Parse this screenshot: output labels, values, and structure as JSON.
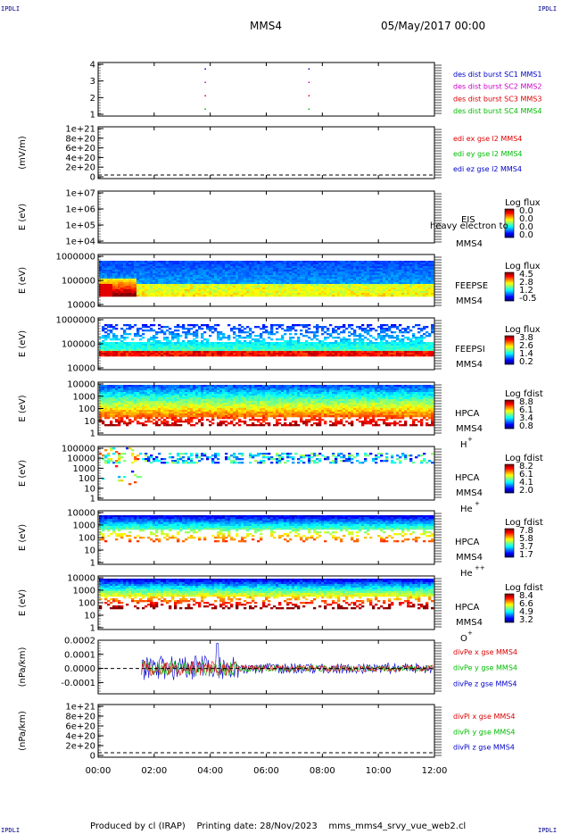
{
  "corner_label": "IPDLI",
  "header": {
    "spacecraft": "MMS4",
    "date": "05/May/2017 00:00"
  },
  "footer": {
    "produced_by": "Produced by cl (IRAP)",
    "printing_date": "Printing date: 28/Nov/2023",
    "filename": "mms_mms4_srvy_vue_web2.cl"
  },
  "x_axis": {
    "ticks": [
      "00:00",
      "02:00",
      "04:00",
      "06:00",
      "08:00",
      "10:00",
      "12:00"
    ],
    "range_hours": [
      0,
      12
    ]
  },
  "colors": {
    "red": "#dd0000",
    "magenta": "#cc00cc",
    "green": "#00bb00",
    "blue": "#0000cc"
  },
  "chart_data": [
    {
      "type": "scatter",
      "panel": "des_dist_burst",
      "ylim": [
        0.5,
        4.5
      ],
      "yticks": [
        "1",
        "2",
        "3",
        "4"
      ],
      "legend": [
        {
          "label": "des dist burst SC1 MMS1",
          "color": "#0000cc"
        },
        {
          "label": "des dist burst SC2 MMS2",
          "color": "#cc00cc"
        },
        {
          "label": "des dist burst SC3 MMS3",
          "color": "#dd0000"
        },
        {
          "label": "des dist burst SC4 MMS4",
          "color": "#00bb00"
        }
      ],
      "series": [
        {
          "x": [
            3.8,
            7.5
          ],
          "y": [
            4,
            4
          ]
        },
        {
          "x": [
            3.8,
            7.5
          ],
          "y": [
            3,
            3
          ]
        },
        {
          "x": [
            3.8,
            7.5
          ],
          "y": [
            2,
            2
          ]
        },
        {
          "x": [
            3.8,
            7.5
          ],
          "y": [
            1,
            1
          ]
        }
      ]
    },
    {
      "type": "line",
      "panel": "edi",
      "ylabel": "(mV/m)",
      "yticks": [
        "0",
        "2e+20",
        "4e+20",
        "6e+20",
        "8e+20",
        "1e+21"
      ],
      "legend": [
        {
          "label": "edi ex gse l2 MMS4",
          "color": "#dd0000"
        },
        {
          "label": "edi ey gse l2 MMS4",
          "color": "#00bb00"
        },
        {
          "label": "edi ez gse l2 MMS4",
          "color": "#0000cc"
        }
      ]
    },
    {
      "type": "heatmap",
      "panel": "eis",
      "ylabel": "E (eV)",
      "yticks": [
        "1e+04",
        "1e+05",
        "1e+06",
        "1e+07"
      ],
      "instrument": "EIS",
      "overlay_text": "heavy electron to",
      "sc": "MMS4",
      "colorbar": {
        "title": "Log flux",
        "ticks": [
          "0.0",
          "0.0",
          "0.0",
          "0.0"
        ]
      }
    },
    {
      "type": "heatmap",
      "panel": "feepse",
      "ylabel": "E (eV)",
      "yticks": [
        "10000",
        "100000",
        "1000000"
      ],
      "instrument": "FEEPSE",
      "sc": "MMS4",
      "colorbar": {
        "title": "Log flux",
        "ticks": [
          "4.5",
          "2.8",
          "1.2",
          "-0.5"
        ]
      }
    },
    {
      "type": "heatmap",
      "panel": "feepsi",
      "ylabel": "E (eV)",
      "yticks": [
        "10000",
        "100000",
        "1000000"
      ],
      "instrument": "FEEPSI",
      "sc": "MMS4",
      "colorbar": {
        "title": "Log flux",
        "ticks": [
          "3.8",
          "2.6",
          "1.4",
          "0.2"
        ]
      }
    },
    {
      "type": "heatmap",
      "panel": "hpca_h",
      "ylabel": "E (eV)",
      "yticks": [
        "1",
        "10",
        "100",
        "1000",
        "10000"
      ],
      "instrument": "HPCA",
      "sc": "MMS4",
      "species": "H",
      "charge": "+",
      "colorbar": {
        "title": "Log fdist",
        "ticks": [
          "8.8",
          "6.1",
          "3.4",
          "0.8"
        ]
      }
    },
    {
      "type": "heatmap",
      "panel": "hpca_he1",
      "ylabel": "E (eV)",
      "yticks": [
        "1",
        "10",
        "100",
        "1000",
        "10000",
        "100000"
      ],
      "instrument": "HPCA",
      "sc": "MMS4",
      "species": "He",
      "charge": "+",
      "colorbar": {
        "title": "Log fdist",
        "ticks": [
          "8.2",
          "6.1",
          "4.1",
          "2.0"
        ]
      }
    },
    {
      "type": "heatmap",
      "panel": "hpca_he2",
      "ylabel": "E (eV)",
      "yticks": [
        "1",
        "10",
        "100",
        "1000",
        "10000"
      ],
      "instrument": "HPCA",
      "sc": "MMS4",
      "species": "He",
      "charge": "++",
      "colorbar": {
        "title": "Log fdist",
        "ticks": [
          "7.8",
          "5.8",
          "3.7",
          "1.7"
        ]
      }
    },
    {
      "type": "heatmap",
      "panel": "hpca_o",
      "ylabel": "E (eV)",
      "yticks": [
        "1",
        "10",
        "100",
        "1000",
        "10000"
      ],
      "instrument": "HPCA",
      "sc": "MMS4",
      "species": "O",
      "charge": "+",
      "colorbar": {
        "title": "Log fdist",
        "ticks": [
          "8.4",
          "6.6",
          "4.9",
          "3.2"
        ]
      }
    },
    {
      "type": "line",
      "panel": "divpe",
      "ylabel": "(nPa/km)",
      "ylim": [
        -0.00018,
        0.0002
      ],
      "yticks": [
        "-0.0001",
        "0.0000",
        "0.0001",
        "0.0002"
      ],
      "legend": [
        {
          "label": "divPe x gse MMS4",
          "color": "#dd0000"
        },
        {
          "label": "divPe y gse MMS4",
          "color": "#00bb00"
        },
        {
          "label": "divPe z gse MMS4",
          "color": "#0000cc"
        }
      ],
      "data_start_hour": 1.55
    },
    {
      "type": "line",
      "panel": "divpi",
      "ylabel": "(nPa/km)",
      "yticks": [
        "0",
        "2e+20",
        "4e+20",
        "6e+20",
        "8e+20",
        "1e+21"
      ],
      "legend": [
        {
          "label": "divPi x gse MMS4",
          "color": "#dd0000"
        },
        {
          "label": "divPi y gse MMS4",
          "color": "#00bb00"
        },
        {
          "label": "divPi z gse MMS4",
          "color": "#0000cc"
        }
      ]
    }
  ]
}
